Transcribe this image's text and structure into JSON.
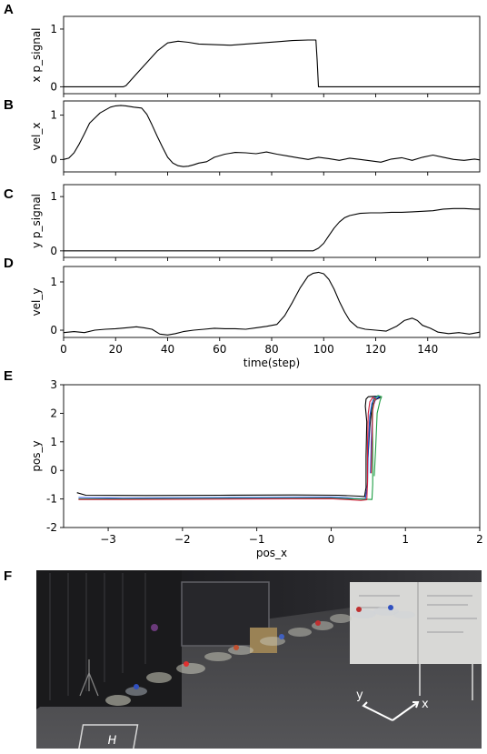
{
  "panels": {
    "A": "A",
    "B": "B",
    "C": "C",
    "D": "D",
    "E": "E",
    "F": "F"
  },
  "chart_data": [
    {
      "id": "A",
      "type": "line",
      "ylabel": "x p_signal",
      "xlim": [
        0,
        160
      ],
      "ylim": [
        -0.12,
        1.22
      ],
      "yticks": [
        0,
        1
      ],
      "xticklabels": false,
      "series": [
        {
          "color": "#000000",
          "x": [
            0,
            23,
            24,
            28,
            32,
            36,
            40,
            44,
            48,
            52,
            58,
            64,
            70,
            76,
            82,
            88,
            94,
            97,
            97.5,
            98,
            160
          ],
          "y": [
            0,
            0,
            0.02,
            0.22,
            0.42,
            0.62,
            0.76,
            0.79,
            0.77,
            0.74,
            0.73,
            0.72,
            0.74,
            0.76,
            0.78,
            0.8,
            0.81,
            0.81,
            0.45,
            0,
            0
          ]
        }
      ]
    },
    {
      "id": "B",
      "type": "line",
      "ylabel": "vel_x",
      "xlim": [
        0,
        160
      ],
      "ylim": [
        -0.28,
        1.32
      ],
      "yticks": [
        0,
        1
      ],
      "xticklabels": false,
      "series": [
        {
          "color": "#000000",
          "x": [
            0,
            2,
            4,
            6,
            8,
            10,
            14,
            18,
            20,
            22,
            24,
            27,
            30,
            32,
            34,
            36,
            38,
            40,
            42,
            44,
            46,
            48,
            50,
            52,
            55,
            58,
            62,
            66,
            70,
            74,
            78,
            82,
            86,
            90,
            94,
            98,
            102,
            106,
            110,
            114,
            118,
            122,
            126,
            130,
            134,
            138,
            142,
            146,
            150,
            154,
            158,
            160
          ],
          "y": [
            0,
            0.03,
            0.15,
            0.35,
            0.58,
            0.82,
            1.05,
            1.18,
            1.21,
            1.22,
            1.21,
            1.18,
            1.16,
            1.02,
            0.78,
            0.52,
            0.28,
            0.05,
            -0.08,
            -0.14,
            -0.16,
            -0.15,
            -0.12,
            -0.08,
            -0.05,
            0.05,
            0.12,
            0.16,
            0.15,
            0.13,
            0.17,
            0.12,
            0.08,
            0.04,
            0.0,
            0.05,
            0.02,
            -0.02,
            0.03,
            0.0,
            -0.03,
            -0.06,
            0.01,
            0.04,
            -0.02,
            0.05,
            0.1,
            0.05,
            0.0,
            -0.02,
            0.01,
            -0.01
          ]
        }
      ]
    },
    {
      "id": "C",
      "type": "line",
      "ylabel": "y p_signal",
      "xlim": [
        0,
        160
      ],
      "ylim": [
        -0.12,
        1.22
      ],
      "yticks": [
        0,
        1
      ],
      "xticklabels": false,
      "series": [
        {
          "color": "#000000",
          "x": [
            0,
            96,
            98,
            100,
            102,
            104,
            106,
            108,
            110,
            114,
            118,
            122,
            126,
            130,
            134,
            138,
            142,
            146,
            150,
            154,
            158,
            160
          ],
          "y": [
            0,
            0,
            0.05,
            0.14,
            0.28,
            0.42,
            0.53,
            0.61,
            0.65,
            0.69,
            0.7,
            0.7,
            0.71,
            0.71,
            0.72,
            0.73,
            0.74,
            0.77,
            0.78,
            0.78,
            0.77,
            0.77
          ]
        }
      ]
    },
    {
      "id": "D",
      "type": "line",
      "ylabel": "vel_y",
      "xlim": [
        0,
        160
      ],
      "ylim": [
        -0.15,
        1.32
      ],
      "yticks": [
        0,
        1
      ],
      "xticklabels": true,
      "xticks": [
        0,
        20,
        40,
        60,
        80,
        100,
        120,
        140
      ],
      "xlabel": "time(step)",
      "series": [
        {
          "color": "#000000",
          "x": [
            0,
            4,
            8,
            12,
            16,
            20,
            24,
            28,
            31,
            34,
            37,
            40,
            43,
            46,
            50,
            54,
            58,
            62,
            66,
            70,
            74,
            78,
            82,
            85,
            88,
            91,
            94,
            96,
            98,
            100,
            102,
            104,
            106,
            108,
            110,
            113,
            116,
            120,
            124,
            128,
            131,
            134,
            136,
            138,
            141,
            144,
            148,
            152,
            156,
            160
          ],
          "y": [
            -0.05,
            -0.03,
            -0.05,
            0.0,
            0.02,
            0.03,
            0.05,
            0.07,
            0.05,
            0.02,
            -0.08,
            -0.1,
            -0.07,
            -0.03,
            0.0,
            0.02,
            0.04,
            0.03,
            0.03,
            0.02,
            0.05,
            0.08,
            0.12,
            0.3,
            0.58,
            0.88,
            1.12,
            1.18,
            1.2,
            1.17,
            1.05,
            0.85,
            0.6,
            0.38,
            0.2,
            0.06,
            0.02,
            0.0,
            -0.02,
            0.08,
            0.2,
            0.25,
            0.2,
            0.1,
            0.04,
            -0.04,
            -0.07,
            -0.05,
            -0.08,
            -0.04
          ]
        }
      ]
    },
    {
      "id": "E",
      "type": "line",
      "xlabel": "pos_x",
      "ylabel": "pos_y",
      "xlim": [
        -3.6,
        2.0
      ],
      "ylim": [
        -2.0,
        3.0
      ],
      "xticks": [
        -3,
        -2,
        -1,
        0,
        1,
        2
      ],
      "yticks": [
        -2,
        -1,
        0,
        1,
        2,
        3
      ],
      "series": [
        {
          "color": "#000000",
          "x": [
            -3.42,
            -3.3,
            -2.5,
            -1.5,
            -0.5,
            0.1,
            0.38,
            0.45,
            0.47,
            0.47,
            0.48,
            0.46,
            0.47,
            0.5,
            0.62,
            0.66,
            0.6,
            0.55,
            0.52,
            0.49
          ],
          "y": [
            -0.78,
            -0.87,
            -0.88,
            -0.87,
            -0.86,
            -0.87,
            -0.9,
            -0.92,
            -0.6,
            0.5,
            1.7,
            2.25,
            2.5,
            2.58,
            2.6,
            2.55,
            2.48,
            2.3,
            1.5,
            0.2
          ]
        },
        {
          "color": "#1f4fd8",
          "x": [
            -3.4,
            -2.8,
            -2.0,
            -1.0,
            0.0,
            0.15,
            0.3,
            0.46,
            0.49,
            0.5,
            0.52,
            0.55,
            0.58,
            0.62,
            0.65,
            0.6,
            0.56,
            0.54,
            0.53
          ],
          "y": [
            -0.95,
            -0.97,
            -0.96,
            -0.95,
            -0.94,
            -0.95,
            -0.98,
            -1.0,
            -0.5,
            0.8,
            1.9,
            2.35,
            2.55,
            2.6,
            2.58,
            2.5,
            2.2,
            1.0,
            -0.1
          ]
        },
        {
          "color": "#1e9e44",
          "x": [
            -3.4,
            -2.8,
            -2.0,
            -1.0,
            0.0,
            0.2,
            0.35,
            0.55,
            0.56,
            0.56,
            0.55,
            0.58,
            0.63,
            0.68,
            0.66,
            0.62,
            0.6,
            0.58
          ],
          "y": [
            -1.0,
            -1.0,
            -0.99,
            -0.98,
            -0.97,
            -0.99,
            -1.0,
            -1.02,
            -0.5,
            1.0,
            2.1,
            2.5,
            2.62,
            2.58,
            2.45,
            2.0,
            0.8,
            -0.2
          ]
        },
        {
          "color": "#d11f3a",
          "x": [
            -3.4,
            -2.8,
            -2.0,
            -1.0,
            0.0,
            0.2,
            0.4,
            0.48,
            0.49,
            0.49,
            0.5,
            0.52,
            0.56,
            0.6,
            0.58,
            0.56,
            0.55,
            0.54
          ],
          "y": [
            -1.02,
            -1.02,
            -1.01,
            -1.0,
            -0.99,
            -1.02,
            -1.05,
            -1.03,
            -0.4,
            0.9,
            2.0,
            2.4,
            2.55,
            2.5,
            2.4,
            2.1,
            1.0,
            -0.1
          ]
        }
      ]
    }
  ],
  "photo": {
    "type": "photograph",
    "axis_labels": {
      "y": "y",
      "x": "x"
    },
    "marker": "H"
  }
}
